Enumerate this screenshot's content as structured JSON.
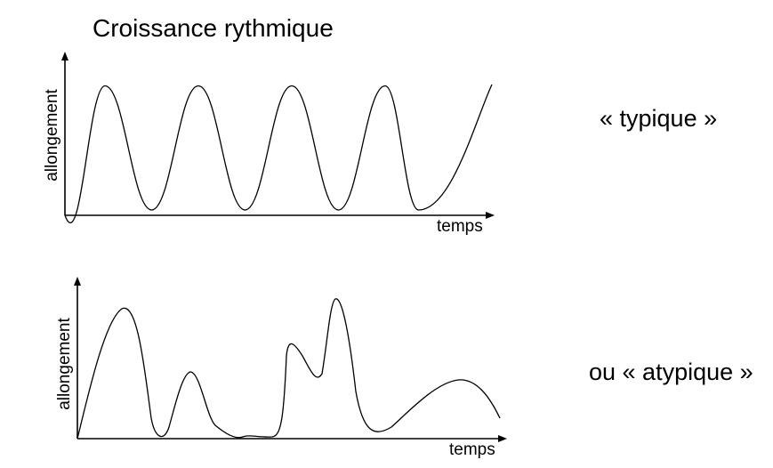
{
  "title": "Croissance rythmique",
  "chart_data": [
    {
      "type": "line",
      "label": "« typique »",
      "xlabel": "temps",
      "ylabel": "allongement",
      "grid": false,
      "series": [
        {
          "x": [
            0,
            3,
            6.5,
            10,
            13.5,
            17,
            20.5,
            24,
            26.5
          ],
          "y": [
            0,
            9.7,
            0.4,
            9.7,
            0.4,
            9.7,
            0.4,
            9.7,
            0.4
          ]
        }
      ],
      "tail": {
        "x": 32,
        "y": 9.8
      }
    },
    {
      "type": "line",
      "label": "ou « atypique »",
      "xlabel": "temps",
      "ylabel": "allongement"
    }
  ]
}
